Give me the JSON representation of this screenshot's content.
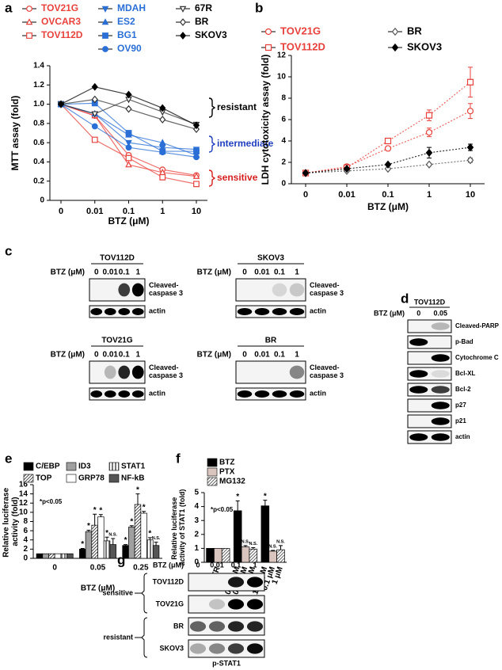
{
  "chart_data": [
    {
      "panel": "a",
      "type": "line",
      "xlabel": "BTZ (μM)",
      "ylabel": "MTT assay (fold)",
      "categories": [
        "0",
        "0.01",
        "0.1",
        "1",
        "10"
      ],
      "ylim": [
        0,
        1.4
      ],
      "yticks": [
        0,
        0.2,
        0.4,
        0.6,
        0.8,
        {
          "value": 1,
          "label": "1.0"
        },
        1.2,
        1.4
      ],
      "series": [
        {
          "name": "TOV21G",
          "color": "#e8413c",
          "marker": "circle-open",
          "values": [
            1,
            0.88,
            0.47,
            0.32,
            0.26
          ]
        },
        {
          "name": "OVCAR3",
          "color": "#e8413c",
          "marker": "triangle-open",
          "values": [
            1,
            0.88,
            0.37,
            0.29,
            0.25
          ]
        },
        {
          "name": "TOV112D",
          "color": "#e8413c",
          "marker": "square-open",
          "values": [
            1,
            0.63,
            0.44,
            0.24,
            0.17
          ]
        },
        {
          "name": "MDAH",
          "color": "#2a6fd6",
          "marker": "triangle-down",
          "values": [
            1,
            0.9,
            0.6,
            0.55,
            0.53
          ]
        },
        {
          "name": "ES2",
          "color": "#2a6fd6",
          "marker": "triangle",
          "values": [
            1,
            0.9,
            0.68,
            0.6,
            0.47
          ]
        },
        {
          "name": "BG1",
          "color": "#2a6fd6",
          "marker": "square",
          "values": [
            1,
            1.01,
            0.7,
            0.51,
            0.51
          ]
        },
        {
          "name": "OV90",
          "color": "#2a6fd6",
          "marker": "circle",
          "values": [
            1,
            0.77,
            0.55,
            0.5,
            0.45
          ]
        },
        {
          "name": "67R",
          "color": "#333333",
          "marker": "triangle-down-open",
          "values": [
            1,
            0.9,
            1.05,
            0.92,
            0.79
          ]
        },
        {
          "name": "BR",
          "color": "#333333",
          "marker": "diamond-open",
          "values": [
            1,
            1.05,
            0.95,
            0.84,
            0.74
          ]
        },
        {
          "name": "SKOV3",
          "color": "#000000",
          "marker": "diamond",
          "values": [
            1,
            1.18,
            1.1,
            0.96,
            0.78
          ]
        }
      ],
      "annotations": [
        {
          "text": "resistant",
          "color": "#000000"
        },
        {
          "text": "intermediate",
          "color": "#1f3fbf"
        },
        {
          "text": "sensitive",
          "color": "#d62020"
        }
      ]
    },
    {
      "panel": "b",
      "type": "line",
      "xlabel": "BTZ (μM)",
      "ylabel": "LDH cytotoxicity assay (fold)",
      "categories": [
        "0",
        "0.01",
        "0.1",
        "1",
        "10"
      ],
      "ylim": [
        0,
        12
      ],
      "yticks": [
        0,
        2,
        4,
        6,
        8,
        10,
        12
      ],
      "series": [
        {
          "name": "TOV21G",
          "color": "#e8413c",
          "marker": "circle-open",
          "values": [
            1,
            1.6,
            3.3,
            4.8,
            6.8
          ],
          "errors": [
            0.1,
            0.2,
            0.2,
            0.4,
            0.7
          ]
        },
        {
          "name": "TOV112D",
          "color": "#e8413c",
          "marker": "square-open",
          "values": [
            1,
            1.5,
            4.0,
            6.4,
            9.5
          ],
          "errors": [
            0.1,
            0.2,
            0.2,
            0.5,
            1.4
          ]
        },
        {
          "name": "BR",
          "color": "#555555",
          "marker": "diamond-open",
          "values": [
            1,
            1.2,
            1.4,
            1.8,
            2.2
          ],
          "errors": [
            0.1,
            0.1,
            0.1,
            0.1,
            0.2
          ]
        },
        {
          "name": "SKOV3",
          "color": "#000000",
          "marker": "diamond",
          "values": [
            1,
            1.4,
            1.8,
            2.9,
            3.4
          ],
          "errors": [
            0.1,
            0.1,
            0.1,
            0.5,
            0.3
          ]
        }
      ]
    },
    {
      "panel": "e",
      "type": "bar",
      "xlabel": "BTZ (μM)",
      "ylabel": "Relative luciferase activity (fold)",
      "note": "*p<0.05",
      "categories": [
        "0",
        "0.05",
        "0.25"
      ],
      "ylim": [
        0,
        16
      ],
      "yticks": [
        0,
        2,
        4,
        6,
        8,
        10,
        12,
        14,
        16
      ],
      "series": [
        {
          "name": "C/EBP",
          "color": "#000000",
          "values": [
            1,
            2,
            2.8
          ],
          "errors": [
            0,
            0.15,
            0.2
          ],
          "marks": [
            null,
            "*",
            "*"
          ]
        },
        {
          "name": "ID3",
          "color": "#a0a0a0",
          "values": [
            1,
            5.8,
            6.8
          ],
          "errors": [
            0,
            0.3,
            0.3
          ],
          "marks": [
            null,
            "*",
            "*"
          ]
        },
        {
          "name": "TOP",
          "color": "#333333",
          "pattern": "diagonal",
          "values": [
            1,
            7.2,
            11.7
          ],
          "errors": [
            0,
            2.4,
            2.3
          ],
          "marks": [
            null,
            "*",
            "*"
          ]
        },
        {
          "name": "GRP78",
          "color": "#ffffff",
          "values": [
            1,
            9,
            9.8
          ],
          "errors": [
            0,
            0.5,
            0.4
          ],
          "marks": [
            null,
            "*",
            "*"
          ]
        },
        {
          "name": "STAT1",
          "color": "#777777",
          "pattern": "vertical",
          "values": [
            1,
            3.8,
            4.0
          ],
          "errors": [
            0,
            0.8,
            0.5
          ],
          "marks": [
            null,
            "*",
            "*"
          ]
        },
        {
          "name": "NF-kB",
          "color": "#555555",
          "values": [
            1,
            3.0,
            2.8
          ],
          "errors": [
            0,
            1.3,
            0.7
          ],
          "marks": [
            null,
            "N.S.",
            "N.S."
          ]
        }
      ]
    },
    {
      "panel": "f",
      "type": "bar",
      "ylabel": "Relative luciferase activity of STAT1 (fold)",
      "note": "*p<0.05",
      "categories": [
        "CTR",
        null,
        null
      ],
      "ylim": [
        0,
        5
      ],
      "yticks": [
        0,
        1,
        2,
        3,
        4,
        5
      ],
      "series": [
        {
          "name": "BTZ",
          "color": "#000000",
          "values": [
            1,
            3.7,
            4.05
          ],
          "errors": [
            0,
            0.7,
            0.4
          ],
          "marks": [
            null,
            "*",
            "*"
          ],
          "dose_labels": [
            null,
            "0.25 μM",
            "1.25 μM"
          ]
        },
        {
          "name": "PTX",
          "color": "#d9c5bd",
          "values": [
            1,
            1.1,
            0.8
          ],
          "errors": [
            0,
            0.1,
            0.05
          ],
          "marks": [
            null,
            "N.S.",
            "N.S."
          ],
          "dose_labels": [
            null,
            "0.01 μM",
            "0.1 μM"
          ]
        },
        {
          "name": "MG132",
          "color": "#555555",
          "pattern": "diagonal",
          "values": [
            1,
            0.95,
            0.9
          ],
          "errors": [
            0,
            0.1,
            0.3
          ],
          "marks": [
            null,
            "N.S.",
            "N.S."
          ],
          "dose_labels": [
            null,
            "0.1 μM",
            "1 μM"
          ]
        }
      ]
    }
  ],
  "blots": {
    "c": {
      "panel": "c",
      "items": [
        {
          "title": "TOV112D",
          "dose_label": "BTZ (μM)",
          "lanes": [
            "0",
            "0.01",
            "0.1",
            "1"
          ],
          "rows": [
            "Cleaved-caspase 3",
            "actin"
          ]
        },
        {
          "title": "SKOV3",
          "dose_label": "BTZ (μM)",
          "lanes": [
            "0",
            "0.01",
            "0.1",
            "1"
          ],
          "rows": [
            "Cleaved-caspase 3",
            "actin"
          ]
        },
        {
          "title": "TOV21G",
          "dose_label": "BTZ (μM)",
          "lanes": [
            "0",
            "0.01",
            "0.1",
            "1"
          ],
          "rows": [
            "Cleaved-caspase 3",
            "actin"
          ]
        },
        {
          "title": "BR",
          "dose_label": "BTZ (μM)",
          "lanes": [
            "0",
            "0.01",
            "0.1",
            "1"
          ],
          "rows": [
            "Cleaved-caspase 3",
            "actin"
          ]
        }
      ]
    },
    "d": {
      "panel": "d",
      "title": "TOV112D",
      "dose_label": "BTZ (μM)",
      "lanes": [
        "0",
        "0.05"
      ],
      "rows": [
        "Cleaved-PARP",
        "p-Bad",
        "Cytochrome C",
        "Bcl-XL",
        "Bcl-2",
        "p27",
        "p21",
        "actin"
      ]
    },
    "g": {
      "panel": "g",
      "dose_label": "BTZ (μM)",
      "lanes": [
        "0",
        "0.01",
        "0.1",
        "1"
      ],
      "groups": [
        {
          "label": "sensitive",
          "rows": [
            "TOV112D",
            "TOV21G"
          ]
        },
        {
          "label": "resistant",
          "rows": [
            "BR",
            "SKOV3"
          ]
        }
      ],
      "caption": "p-STAT1"
    }
  }
}
